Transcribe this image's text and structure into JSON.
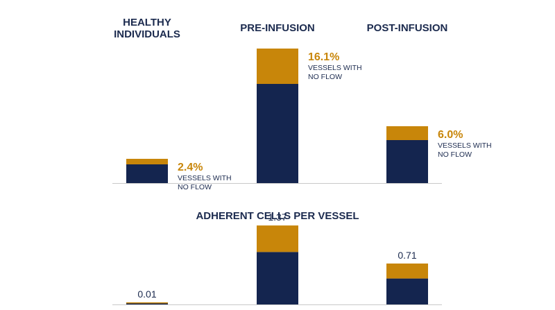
{
  "colors": {
    "navy": "#14254f",
    "gold": "#c8860a",
    "text": "#1b2a4e",
    "axis": "#c9c9c9"
  },
  "categories": [
    {
      "label_lines": [
        "HEALTHY",
        "INDIVIDUALS"
      ]
    },
    {
      "label_lines": [
        "PRE-INFUSION"
      ]
    },
    {
      "label_lines": [
        "POST-INFUSION"
      ]
    }
  ],
  "chart_data": [
    {
      "type": "bar",
      "stacked": true,
      "categories": [
        "HEALTHY INDIVIDUALS",
        "PRE-INFUSION",
        "POST-INFUSION"
      ],
      "title": "",
      "series": [
        {
          "values": [
            27,
            143,
            62
          ]
        },
        {
          "values": [
            8,
            51,
            20
          ]
        }
      ],
      "ylim": [
        0,
        200
      ],
      "annotations": [
        {
          "value_text": "2.4%",
          "note_lines": [
            "VESSELS WITH",
            "NO FLOW"
          ]
        },
        {
          "value_text": "16.1%",
          "note_lines": [
            "VESSELS WITH",
            "NO FLOW"
          ]
        },
        {
          "value_text": "6.0%",
          "note_lines": [
            "VESSELS WITH",
            "NO FLOW"
          ]
        }
      ]
    },
    {
      "type": "bar",
      "stacked": true,
      "categories": [
        "HEALTHY INDIVIDUALS",
        "PRE-INFUSION",
        "POST-INFUSION"
      ],
      "title": "ADHERENT CELLS PER VESSEL",
      "series": [
        {
          "values": [
            0.007,
            0.91,
            0.45
          ]
        },
        {
          "values": [
            0.003,
            0.46,
            0.26
          ]
        }
      ],
      "data_labels": [
        "0.01",
        "1.37",
        "0.71"
      ],
      "ylim": [
        0,
        1.6
      ]
    }
  ]
}
